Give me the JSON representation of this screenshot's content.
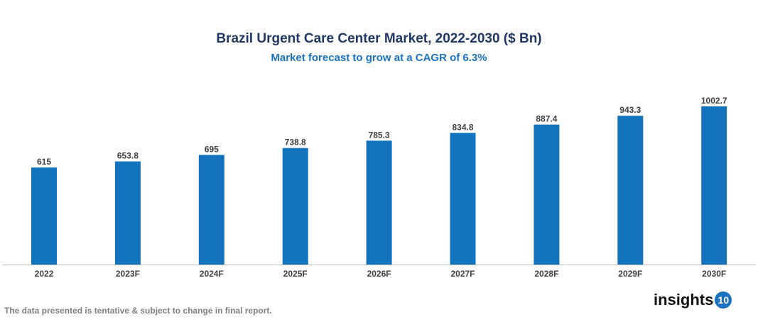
{
  "chart_data": {
    "type": "bar",
    "title": "Brazil Urgent Care Center Market, 2022-2030 ($ Bn)",
    "subtitle": "Market forecast to grow at a CAGR of 6.3%",
    "categories": [
      "2022",
      "2023F",
      "2024F",
      "2025F",
      "2026F",
      "2027F",
      "2028F",
      "2029F",
      "2030F"
    ],
    "values": [
      615,
      653.8,
      695,
      738.8,
      785.3,
      834.8,
      887.4,
      943.3,
      1002.7
    ],
    "value_labels": [
      "615",
      "653.8",
      "695",
      "738.8",
      "785.3",
      "834.8",
      "887.4",
      "943.3",
      "1002.7"
    ],
    "xlabel": "",
    "ylabel": "",
    "ylim": [
      0,
      1002.7
    ],
    "grid": false,
    "bar_color": "#1373bd"
  },
  "footer": {
    "note": "The data presented is tentative & subject to change in final report.",
    "logo_text": "insights",
    "logo_badge": "10"
  }
}
